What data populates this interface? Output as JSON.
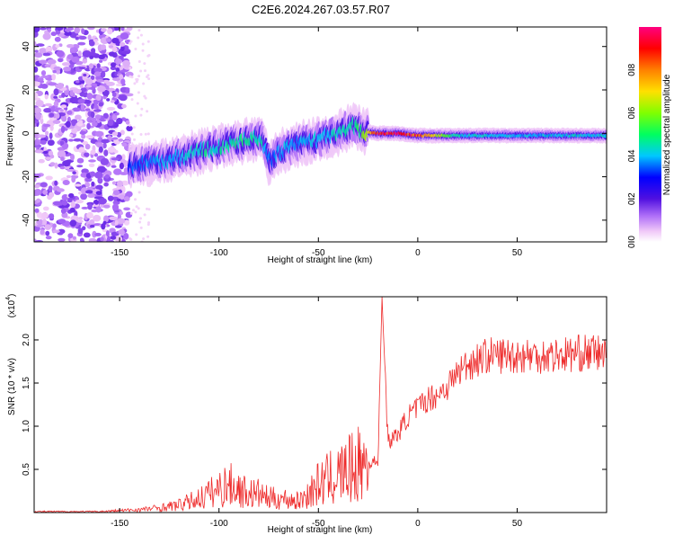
{
  "title": "C2E6.2024.267.03.57.R07",
  "chart_data": [
    {
      "type": "heatmap",
      "xlabel": "Height of straight line (km)",
      "ylabel": "Frequency (Hz)",
      "xlim": [
        -193,
        95
      ],
      "ylim": [
        -50,
        49
      ],
      "x_ticks": [
        -150,
        -100,
        -50,
        0,
        50
      ],
      "y_ticks": [
        -40,
        -20,
        0,
        20,
        40
      ],
      "colorbar": {
        "label": "Normalized spectral amplitude",
        "range": [
          0,
          1
        ],
        "ticks": [
          0.0,
          0.2,
          0.4,
          0.6,
          0.8
        ],
        "tick_labels": [
          "0.0",
          "0.2",
          "0.4",
          "0.6",
          "0.8"
        ],
        "colors": [
          "#ffffff",
          "#f0c8f8",
          "#a060f0",
          "#4a10d8",
          "#0000ff",
          "#00d0ff",
          "#00ff40",
          "#c0ff00",
          "#ffa000",
          "#ff0000",
          "#ff0070"
        ]
      },
      "ridge": {
        "x": [
          -145,
          -130,
          -115,
          -100,
          -85,
          -78,
          -75,
          -68,
          -60,
          -50,
          -40,
          -32,
          -28,
          -20,
          -10,
          0,
          20,
          50,
          95
        ],
        "y": [
          -15,
          -13,
          -10,
          -6,
          -3,
          -2,
          -13,
          -8,
          -5,
          -3,
          0,
          4,
          1,
          0,
          0,
          -1,
          -1,
          -1,
          -1
        ],
        "peak_amplitude": [
          0.35,
          0.4,
          0.45,
          0.48,
          0.5,
          0.45,
          0.35,
          0.4,
          0.4,
          0.42,
          0.45,
          0.5,
          0.55,
          0.95,
          0.95,
          0.9,
          0.45,
          0.42,
          0.45
        ]
      },
      "noise_region_x": [
        -193,
        -145
      ]
    },
    {
      "type": "line",
      "xlabel": "Height of straight line (km)",
      "ylabel": "SNR (10 * v/v)",
      "y_multiplier_label": "(x10",
      "y_multiplier_exp": "4",
      "xlim": [
        -193,
        95
      ],
      "ylim": [
        0,
        2.5
      ],
      "x_ticks": [
        -150,
        -100,
        -50,
        0,
        50
      ],
      "y_ticks": [
        0.5,
        1.0,
        1.5,
        2.0
      ],
      "y_tick_labels": [
        "0.5",
        "1.0",
        "1.5",
        "2.0"
      ],
      "series": [
        {
          "color": "#ee2a2a",
          "x": [
            -193,
            -160,
            -150,
            -140,
            -130,
            -120,
            -110,
            -100,
            -95,
            -90,
            -85,
            -80,
            -75,
            -70,
            -65,
            -60,
            -55,
            -50,
            -45,
            -40,
            -35,
            -30,
            -25,
            -20,
            -18,
            -15,
            -10,
            -5,
            0,
            5,
            10,
            15,
            20,
            25,
            30,
            35,
            40,
            50,
            60,
            70,
            80,
            90,
            95
          ],
          "y": [
            0.01,
            0.01,
            0.02,
            0.03,
            0.05,
            0.08,
            0.15,
            0.25,
            0.3,
            0.25,
            0.2,
            0.2,
            0.15,
            0.15,
            0.14,
            0.12,
            0.2,
            0.3,
            0.35,
            0.4,
            0.45,
            0.5,
            0.55,
            0.6,
            2.5,
            0.8,
            0.9,
            1.1,
            1.2,
            1.3,
            1.35,
            1.45,
            1.6,
            1.7,
            1.75,
            1.8,
            1.8,
            1.8,
            1.8,
            1.8,
            1.82,
            1.83,
            1.8
          ]
        }
      ]
    }
  ]
}
